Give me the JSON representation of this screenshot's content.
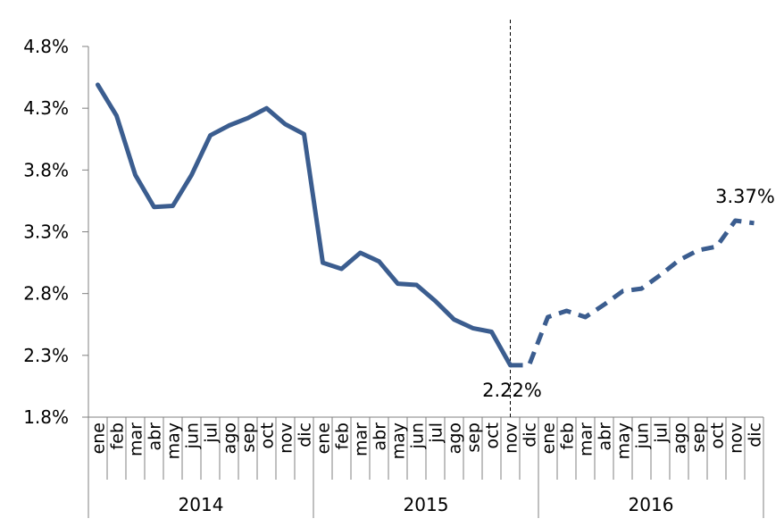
{
  "chart_data": {
    "type": "line",
    "title": "",
    "xlabel": "",
    "ylabel": "",
    "ylim": [
      1.8,
      4.8
    ],
    "y_ticks": [
      "1.8%",
      "2.3%",
      "2.8%",
      "3.3%",
      "3.8%",
      "4.3%",
      "4.8%"
    ],
    "y_tick_values": [
      1.8,
      2.3,
      2.8,
      3.3,
      3.8,
      4.3,
      4.8
    ],
    "months": [
      "ene",
      "feb",
      "mar",
      "abr",
      "may",
      "jun",
      "jul",
      "ago",
      "sep",
      "oct",
      "nov",
      "dic"
    ],
    "years": [
      "2014",
      "2015",
      "2016"
    ],
    "grid": false,
    "line_color": "#3B5D8F",
    "series": [
      {
        "values": [
          4.49,
          4.24,
          3.76,
          3.5,
          3.51,
          3.76,
          4.08,
          4.16,
          4.22,
          4.3,
          4.17,
          4.09,
          3.05,
          3.0,
          3.13,
          3.06,
          2.88,
          2.87,
          2.74,
          2.59,
          2.52,
          2.49,
          2.22,
          2.22,
          2.61,
          2.66,
          2.61,
          2.71,
          2.82,
          2.84,
          2.95,
          3.07,
          3.15,
          3.18,
          3.39,
          3.37
        ],
        "style_by_index": "solid 0-22, dashed 22-35"
      }
    ],
    "annotations": [
      {
        "text": "2.22%",
        "index": 22,
        "value": 2.22
      },
      {
        "text": "3.37%",
        "index": 35,
        "value": 3.37
      }
    ],
    "vertical_marker_index": 22
  }
}
